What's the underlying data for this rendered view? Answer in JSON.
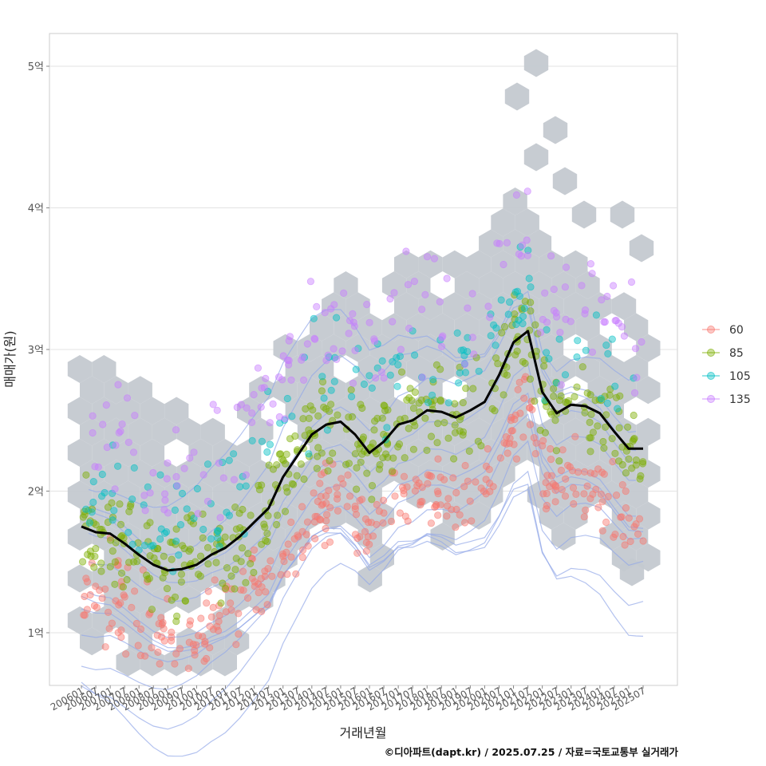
{
  "chart_data": {
    "type": "scatter",
    "x": [
      "200601",
      "200607",
      "200701",
      "200707",
      "200801",
      "200807",
      "200901",
      "200907",
      "201001",
      "201007",
      "201101",
      "201107",
      "201201",
      "201207",
      "201301",
      "201307",
      "201401",
      "201407",
      "201501",
      "201507",
      "201601",
      "201607",
      "201701",
      "201707",
      "201801",
      "201807",
      "201901",
      "201907",
      "202001",
      "202007",
      "202101",
      "202107",
      "202201",
      "202207",
      "202301",
      "202307",
      "202401",
      "202407",
      "202501",
      "202507"
    ],
    "xlabel": "거래년월",
    "ylabel": "매매가(원)",
    "y_ticks": [
      {
        "value": 1,
        "label": "1억"
      },
      {
        "value": 2,
        "label": "2억"
      },
      {
        "value": 3,
        "label": "3억"
      },
      {
        "value": 4,
        "label": "4억"
      },
      {
        "value": 5,
        "label": "5억"
      }
    ],
    "ylim": [
      0.63,
      5.24
    ],
    "y_unit": "억원",
    "series": [
      {
        "name": "60",
        "color": "#F8766D"
      },
      {
        "name": "85",
        "color": "#7CAE00"
      },
      {
        "name": "105",
        "color": "#00BFC4"
      },
      {
        "name": "135",
        "color": "#C77CFF"
      }
    ],
    "trend": {
      "name": "moving average",
      "color": "#000000",
      "values": [
        1.75,
        1.71,
        1.7,
        1.63,
        1.55,
        1.48,
        1.44,
        1.45,
        1.48,
        1.55,
        1.6,
        1.68,
        1.78,
        1.88,
        2.1,
        2.25,
        2.4,
        2.47,
        2.49,
        2.4,
        2.27,
        2.35,
        2.47,
        2.5,
        2.57,
        2.56,
        2.52,
        2.57,
        2.63,
        2.82,
        3.05,
        3.13,
        2.7,
        2.55,
        2.61,
        2.6,
        2.55,
        2.42,
        2.3,
        2.3
      ]
    },
    "legend": {
      "position": "right"
    },
    "grid": true
  },
  "caption": "©디아파트(dapt.kr) / 2025.07.25 / 자료=국토교통부 실거래가"
}
